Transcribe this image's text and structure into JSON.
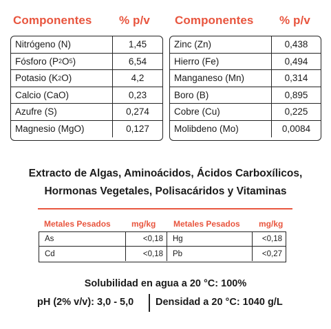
{
  "left_table": {
    "header_name": "Componentes",
    "header_value": "% p/v",
    "rows": [
      {
        "name": "Nitrógeno (N)",
        "value": "1,45"
      },
      {
        "name_parts": [
          "Fósforo (P",
          "2",
          "O",
          "5",
          ")"
        ],
        "value": "6,54"
      },
      {
        "name_parts": [
          "Potasio (K",
          "2",
          "O)"
        ],
        "value": "4,2"
      },
      {
        "name": "Calcio (CaO)",
        "value": "0,23"
      },
      {
        "name": "Azufre (S)",
        "value": "0,274"
      },
      {
        "name": "Magnesio (MgO)",
        "value": "0,127"
      }
    ]
  },
  "right_table": {
    "header_name": "Componentes",
    "header_value": "% p/v",
    "rows": [
      {
        "name": "Zinc (Zn)",
        "value": "0,438"
      },
      {
        "name": "Hierro (Fe)",
        "value": "0,494"
      },
      {
        "name": "Manganeso (Mn)",
        "value": "0,314"
      },
      {
        "name": "Boro (B)",
        "value": "0,895"
      },
      {
        "name": "Cobre (Cu)",
        "value": "0,225"
      },
      {
        "name": "Molibdeno (Mo)",
        "value": "0,0084"
      }
    ]
  },
  "title": {
    "line1": "Extracto de Algas, Aminoácidos, Ácidos Carboxílicos,",
    "line2": "Hormonas Vegetales, Polisacáridos y Vitaminas"
  },
  "metals": {
    "header_name_1": "Metales Pesados",
    "header_unit_1": "mg/kg",
    "header_name_2": "Metales Pesados",
    "header_unit_2": "mg/kg",
    "rows": [
      {
        "name1": "As",
        "val1": "<0,18",
        "name2": "Hg",
        "val2": "<0,18"
      },
      {
        "name1": "Cd",
        "val1": "<0,18",
        "name2": "Pb",
        "val2": "<0,27"
      }
    ]
  },
  "footer": {
    "solubility": "Solubilidad en agua a 20 °C: 100%",
    "ph": "pH (2% v/v): 3,0 - 5,0",
    "density": "Densidad a 20 °C: 1040 g/L"
  },
  "colors": {
    "accent": "#e8553e",
    "text": "#1a1a1a",
    "border": "#222222"
  }
}
